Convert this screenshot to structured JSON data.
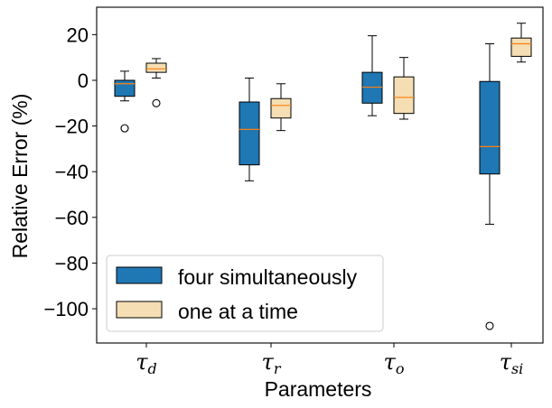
{
  "chart_data": {
    "type": "box",
    "xlabel": "Parameters",
    "ylabel": "Relative Error (%)",
    "ylim": [
      -115,
      32
    ],
    "yticks": [
      20,
      0,
      -20,
      -40,
      -60,
      -80,
      -100
    ],
    "ytick_labels": [
      "20",
      "0",
      "−20",
      "−40",
      "−60",
      "−80",
      "−100"
    ],
    "categories": [
      {
        "symbol": "τ",
        "sub": "d"
      },
      {
        "symbol": "τ",
        "sub": "r"
      },
      {
        "symbol": "τ",
        "sub": "o"
      },
      {
        "symbol": "τ",
        "sub": "si"
      }
    ],
    "series": [
      {
        "name": "four simultaneously",
        "color": "#1f77b4",
        "boxes": [
          {
            "whisker_low": -9,
            "q1": -7,
            "median": -1.5,
            "q3": 0,
            "whisker_high": 4,
            "outliers": [
              -21
            ]
          },
          {
            "whisker_low": -44,
            "q1": -37,
            "median": -21.5,
            "q3": -9.5,
            "whisker_high": 1,
            "outliers": []
          },
          {
            "whisker_low": -15.5,
            "q1": -10,
            "median": -3,
            "q3": 3.5,
            "whisker_high": 19.5,
            "outliers": []
          },
          {
            "whisker_low": -63,
            "q1": -41,
            "median": -29,
            "q3": -0.5,
            "whisker_high": 16,
            "outliers": [
              -107.5
            ]
          }
        ]
      },
      {
        "name": "one at a time",
        "color": "#f5deb3",
        "boxes": [
          {
            "whisker_low": 1,
            "q1": 3.5,
            "median": 5,
            "q3": 7.5,
            "whisker_high": 9.5,
            "outliers": [
              -10
            ]
          },
          {
            "whisker_low": -22,
            "q1": -16.5,
            "median": -11,
            "q3": -8,
            "whisker_high": -1.5,
            "outliers": []
          },
          {
            "whisker_low": -17,
            "q1": -14.5,
            "median": -7.5,
            "q3": 1.5,
            "whisker_high": 10,
            "outliers": []
          },
          {
            "whisker_low": 8,
            "q1": 10.5,
            "median": 16,
            "q3": 18.5,
            "whisker_high": 25,
            "outliers": []
          }
        ]
      }
    ],
    "median_color": "#ff7f0e",
    "legend_position": "lower-left"
  }
}
